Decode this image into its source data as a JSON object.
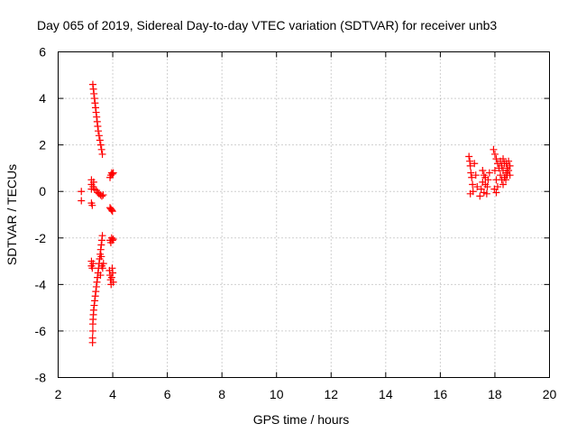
{
  "chart_data": {
    "type": "scatter",
    "title": "Day 065 of 2019, Sidereal Day-to-day VTEC variation (SDTVAR) for receiver unb3",
    "xlabel": "GPS time / hours",
    "ylabel": "SDTVAR / TECUs",
    "xlim": [
      2,
      20
    ],
    "ylim": [
      -8,
      6
    ],
    "x_ticks": [
      "2",
      "4",
      "6",
      "8",
      "10",
      "12",
      "14",
      "16",
      "18",
      "20"
    ],
    "y_ticks": [
      "-8",
      "-6",
      "-4",
      "-2",
      "0",
      "2",
      "4",
      "6"
    ],
    "grid": true,
    "marker": "+",
    "series": [
      {
        "name": "SDTVAR",
        "color": "#ff0000",
        "points": [
          [
            2.85,
            0.0
          ],
          [
            2.85,
            -0.4
          ],
          [
            3.22,
            0.5
          ],
          [
            3.22,
            0.3
          ],
          [
            3.22,
            0.1
          ],
          [
            3.22,
            -0.5
          ],
          [
            3.25,
            -0.6
          ],
          [
            3.28,
            0.2
          ],
          [
            3.3,
            0.4
          ],
          [
            3.33,
            0.1
          ],
          [
            3.4,
            0.05
          ],
          [
            3.45,
            -0.05
          ],
          [
            3.5,
            -0.1
          ],
          [
            3.55,
            -0.15
          ],
          [
            3.6,
            -0.2
          ],
          [
            3.65,
            -0.15
          ],
          [
            3.27,
            4.6
          ],
          [
            3.29,
            4.4
          ],
          [
            3.31,
            4.2
          ],
          [
            3.33,
            4.0
          ],
          [
            3.35,
            3.8
          ],
          [
            3.37,
            3.6
          ],
          [
            3.39,
            3.4
          ],
          [
            3.41,
            3.2
          ],
          [
            3.43,
            3.0
          ],
          [
            3.45,
            2.8
          ],
          [
            3.47,
            2.6
          ],
          [
            3.5,
            2.4
          ],
          [
            3.53,
            2.2
          ],
          [
            3.56,
            2.0
          ],
          [
            3.59,
            1.8
          ],
          [
            3.62,
            1.6
          ],
          [
            3.9,
            0.6
          ],
          [
            3.93,
            0.7
          ],
          [
            3.96,
            0.8
          ],
          [
            3.99,
            0.75
          ],
          [
            4.02,
            0.8
          ],
          [
            3.9,
            -0.7
          ],
          [
            3.93,
            -0.75
          ],
          [
            3.96,
            -0.8
          ],
          [
            3.99,
            -0.85
          ],
          [
            3.9,
            -2.1
          ],
          [
            3.93,
            -2.2
          ],
          [
            3.96,
            -2.0
          ],
          [
            3.99,
            -2.1
          ],
          [
            4.02,
            -2.05
          ],
          [
            3.88,
            -3.4
          ],
          [
            3.9,
            -3.6
          ],
          [
            3.92,
            -3.8
          ],
          [
            3.94,
            -4.0
          ],
          [
            3.96,
            -3.7
          ],
          [
            3.98,
            -3.3
          ],
          [
            4.0,
            -3.5
          ],
          [
            4.02,
            -3.9
          ],
          [
            3.62,
            -1.9
          ],
          [
            3.6,
            -2.1
          ],
          [
            3.58,
            -2.3
          ],
          [
            3.56,
            -2.5
          ],
          [
            3.54,
            -2.7
          ],
          [
            3.52,
            -2.9
          ],
          [
            3.5,
            -3.1
          ],
          [
            3.48,
            -3.3
          ],
          [
            3.46,
            -3.5
          ],
          [
            3.44,
            -3.7
          ],
          [
            3.42,
            -3.9
          ],
          [
            3.4,
            -4.1
          ],
          [
            3.38,
            -4.3
          ],
          [
            3.36,
            -4.5
          ],
          [
            3.34,
            -4.7
          ],
          [
            3.32,
            -4.9
          ],
          [
            3.3,
            -5.1
          ],
          [
            3.29,
            -5.3
          ],
          [
            3.28,
            -5.5
          ],
          [
            3.27,
            -5.7
          ],
          [
            3.27,
            -6.0
          ],
          [
            3.26,
            -6.3
          ],
          [
            3.26,
            -6.5
          ],
          [
            3.6,
            -3.2
          ],
          [
            3.63,
            -3.3
          ],
          [
            3.66,
            -3.1
          ],
          [
            3.55,
            -3.6
          ],
          [
            3.58,
            -2.8
          ],
          [
            3.22,
            -3.0
          ],
          [
            3.22,
            -3.2
          ],
          [
            3.25,
            -3.3
          ],
          [
            3.28,
            -3.1
          ],
          [
            17.05,
            1.5
          ],
          [
            17.08,
            1.3
          ],
          [
            17.1,
            1.1
          ],
          [
            17.12,
            0.8
          ],
          [
            17.15,
            0.6
          ],
          [
            17.18,
            0.3
          ],
          [
            17.2,
            0.0
          ],
          [
            17.1,
            -0.1
          ],
          [
            17.25,
            1.2
          ],
          [
            17.3,
            0.7
          ],
          [
            17.35,
            0.2
          ],
          [
            17.45,
            -0.2
          ],
          [
            17.5,
            0.1
          ],
          [
            17.55,
            0.4
          ],
          [
            17.6,
            0.7
          ],
          [
            17.65,
            0.3
          ],
          [
            17.7,
            -0.1
          ],
          [
            17.75,
            0.5
          ],
          [
            17.8,
            0.8
          ],
          [
            17.55,
            0.9
          ],
          [
            17.65,
            0.6
          ],
          [
            17.72,
            0.2
          ],
          [
            17.6,
            -0.05
          ],
          [
            17.95,
            1.8
          ],
          [
            18.0,
            1.6
          ],
          [
            18.05,
            1.4
          ],
          [
            18.1,
            1.2
          ],
          [
            18.15,
            1.0
          ],
          [
            18.2,
            0.7
          ],
          [
            18.25,
            0.5
          ],
          [
            18.3,
            0.3
          ],
          [
            18.0,
            0.9
          ],
          [
            18.05,
            0.5
          ],
          [
            18.1,
            0.2
          ],
          [
            17.98,
            0.1
          ],
          [
            18.05,
            -0.05
          ],
          [
            18.2,
            1.3
          ],
          [
            18.25,
            1.1
          ],
          [
            18.3,
            0.9
          ],
          [
            18.35,
            1.2
          ],
          [
            18.4,
            0.8
          ],
          [
            18.45,
            1.0
          ],
          [
            18.5,
            1.3
          ],
          [
            18.55,
            1.1
          ],
          [
            18.35,
            0.6
          ],
          [
            18.4,
            0.5
          ],
          [
            18.45,
            0.7
          ],
          [
            18.5,
            0.9
          ],
          [
            18.55,
            0.7
          ],
          [
            18.3,
            1.4
          ],
          [
            18.42,
            1.2
          ]
        ]
      }
    ]
  }
}
